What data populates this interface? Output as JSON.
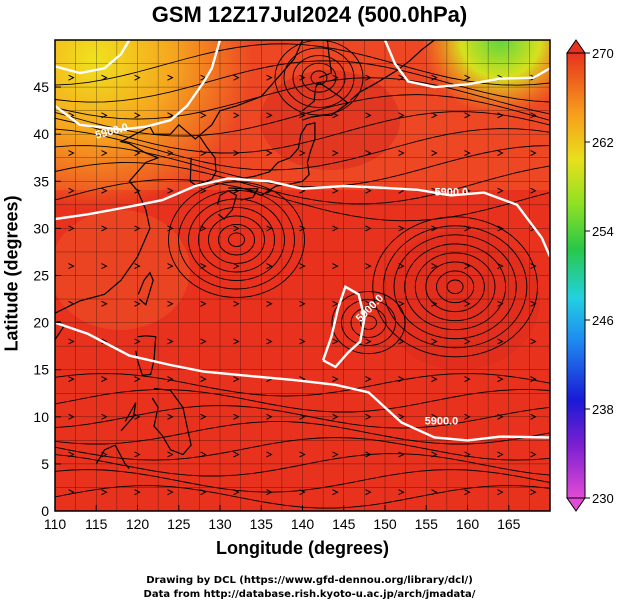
{
  "title": "GSM 12Z17Jul2024 (500.0hPa)",
  "xaxis": {
    "label": "Longitude (degrees)",
    "ticks": [
      "110",
      "115",
      "120",
      "125",
      "130",
      "135",
      "140",
      "145",
      "150",
      "155",
      "160",
      "165"
    ]
  },
  "yaxis": {
    "label": "Latitude  (degrees)",
    "ticks": [
      "0",
      "5",
      "10",
      "15",
      "20",
      "25",
      "30",
      "35",
      "40",
      "45"
    ]
  },
  "colorbar": {
    "ticks": [
      "230",
      "238",
      "246",
      "254",
      "262",
      "270"
    ]
  },
  "contour_labels": [
    "5900.0",
    "5900.0",
    "5900.0",
    "5900.0"
  ],
  "credits": {
    "line1": "Drawing by DCL (https://www.gfd-dennou.org/library/dcl/)",
    "line2": "Data from http://database.rish.kyoto-u.ac.jp/arch/jmadata/"
  },
  "colors": {
    "field_main": "#e8321e",
    "field_warm": "#f05a2a",
    "field_cool": "#f7b21e",
    "field_green": "#7cd83c",
    "contour": "#ffffff",
    "streamline": "#000000"
  }
}
